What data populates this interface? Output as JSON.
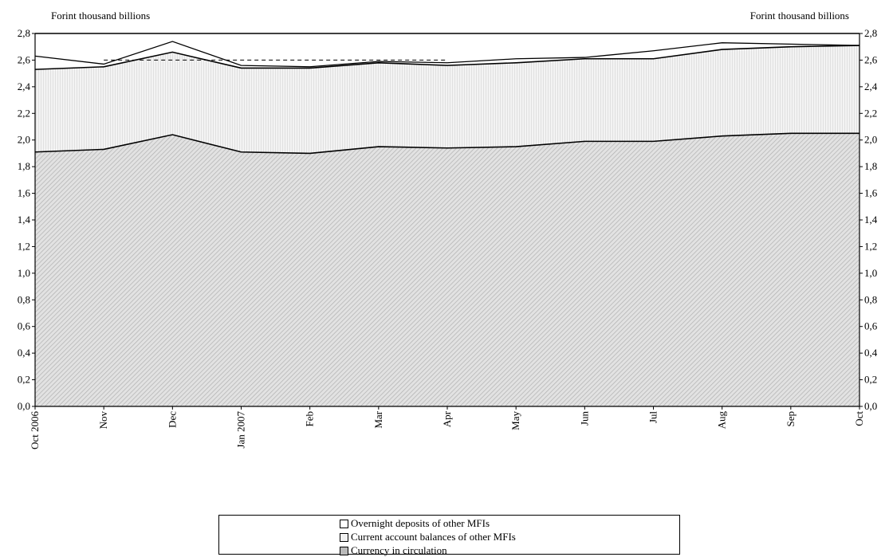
{
  "chart_data": {
    "type": "area",
    "y_axis_label_left": "Forint thousand billions",
    "y_axis_label_right": "Forint thousand billions",
    "categories": [
      "Oct 2006",
      "Nov",
      "Dec",
      "Jan 2007",
      "Feb",
      "Mar",
      "Apr",
      "May",
      "Jun",
      "Jul",
      "Aug",
      "Sep",
      "Oct"
    ],
    "ylim": [
      0,
      2.8
    ],
    "y_ticks": [
      "0,0",
      "0,2",
      "0,4",
      "0,6",
      "0,8",
      "1,0",
      "1,2",
      "1,4",
      "1,6",
      "1,8",
      "2,0",
      "2,2",
      "2,4",
      "2,6",
      "2,8"
    ],
    "series": [
      {
        "name": "Currency in circulation",
        "cumulative": [
          1.91,
          1.93,
          2.04,
          1.91,
          1.9,
          1.95,
          1.94,
          1.95,
          1.99,
          1.99,
          2.03,
          2.05,
          2.05
        ],
        "fill": "#d9d9d9",
        "pattern": "dense-diagonal"
      },
      {
        "name": "Current account balances of other MFIs",
        "cumulative": [
          2.53,
          2.55,
          2.66,
          2.54,
          2.54,
          2.58,
          2.56,
          2.58,
          2.61,
          2.61,
          2.68,
          2.7,
          2.71
        ],
        "fill": "#eeeeee",
        "pattern": "fine-vertical"
      },
      {
        "name": "Overnight deposits of other MFIs",
        "cumulative": [
          2.63,
          2.57,
          2.74,
          2.56,
          2.55,
          2.59,
          2.58,
          2.61,
          2.62,
          2.67,
          2.73,
          2.72,
          2.71
        ],
        "fill": "#ffffff",
        "pattern": "none"
      }
    ],
    "reference_line": {
      "style": "dashed",
      "value": 2.6,
      "from_index": 1,
      "to_index": 6
    },
    "legend_position": "bottom"
  }
}
